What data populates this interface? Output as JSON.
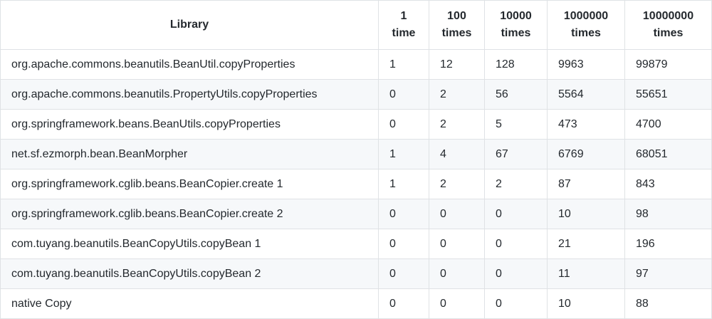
{
  "table": {
    "header": [
      "Library",
      "1 time",
      "100 times",
      "10000 times",
      "1000000 times",
      "10000000 times"
    ],
    "rows": [
      [
        "org.apache.commons.beanutils.BeanUtil.copyProperties",
        1,
        12,
        128,
        9963,
        99879
      ],
      [
        "org.apache.commons.beanutils.PropertyUtils.copyProperties",
        0,
        2,
        56,
        5564,
        55651
      ],
      [
        "org.springframework.beans.BeanUtils.copyProperties",
        0,
        2,
        5,
        473,
        4700
      ],
      [
        "net.sf.ezmorph.bean.BeanMorpher",
        1,
        4,
        67,
        6769,
        68051
      ],
      [
        "org.springframework.cglib.beans.BeanCopier.create 1",
        1,
        2,
        2,
        87,
        843
      ],
      [
        "org.springframework.cglib.beans.BeanCopier.create 2",
        0,
        0,
        0,
        10,
        98
      ],
      [
        "com.tuyang.beanutils.BeanCopyUtils.copyBean 1",
        0,
        0,
        0,
        21,
        196
      ],
      [
        "com.tuyang.beanutils.BeanCopyUtils.copyBean 2",
        0,
        0,
        0,
        11,
        97
      ],
      [
        "native Copy",
        0,
        0,
        0,
        10,
        88
      ]
    ]
  }
}
